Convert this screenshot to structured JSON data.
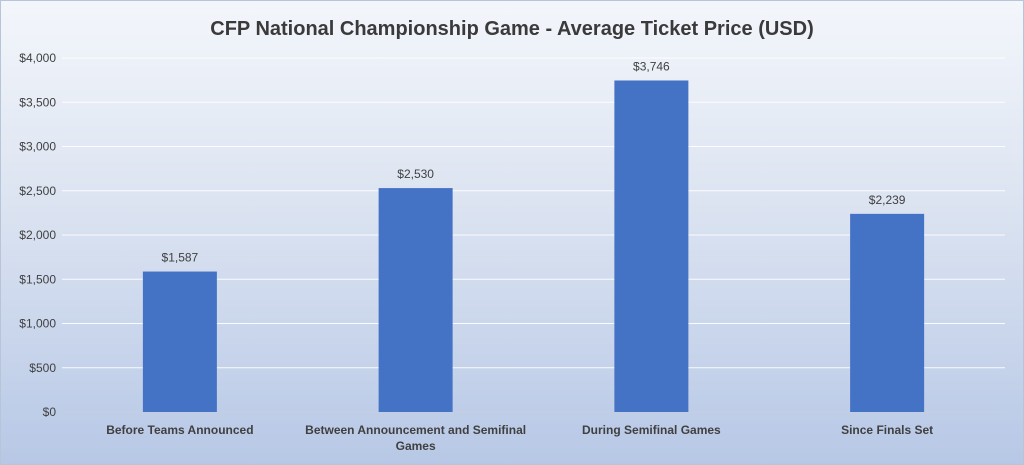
{
  "chart_data": {
    "type": "bar",
    "title": "CFP National Championship Game - Average Ticket Price (USD)",
    "categories": [
      [
        "Before Teams Announced"
      ],
      [
        "Between Announcement and Semifinal",
        "Games"
      ],
      [
        "During Semifinal Games"
      ],
      [
        "Since Finals Set"
      ]
    ],
    "values": [
      1587,
      2530,
      3746,
      2239
    ],
    "data_labels": [
      "$1,587",
      "$2,530",
      "$3,746",
      "$2,239"
    ],
    "yticks": [
      0,
      500,
      1000,
      1500,
      2000,
      2500,
      3000,
      3500,
      4000
    ],
    "ytick_labels": [
      "$0",
      "$500",
      "$1,000",
      "$1,500",
      "$2,000",
      "$2,500",
      "$3,000",
      "$3,500",
      "$4,000"
    ],
    "ylim": [
      0,
      4000
    ],
    "xlabel": "",
    "ylabel": "",
    "grid": true,
    "colors": {
      "bar": "#4472C4"
    }
  }
}
